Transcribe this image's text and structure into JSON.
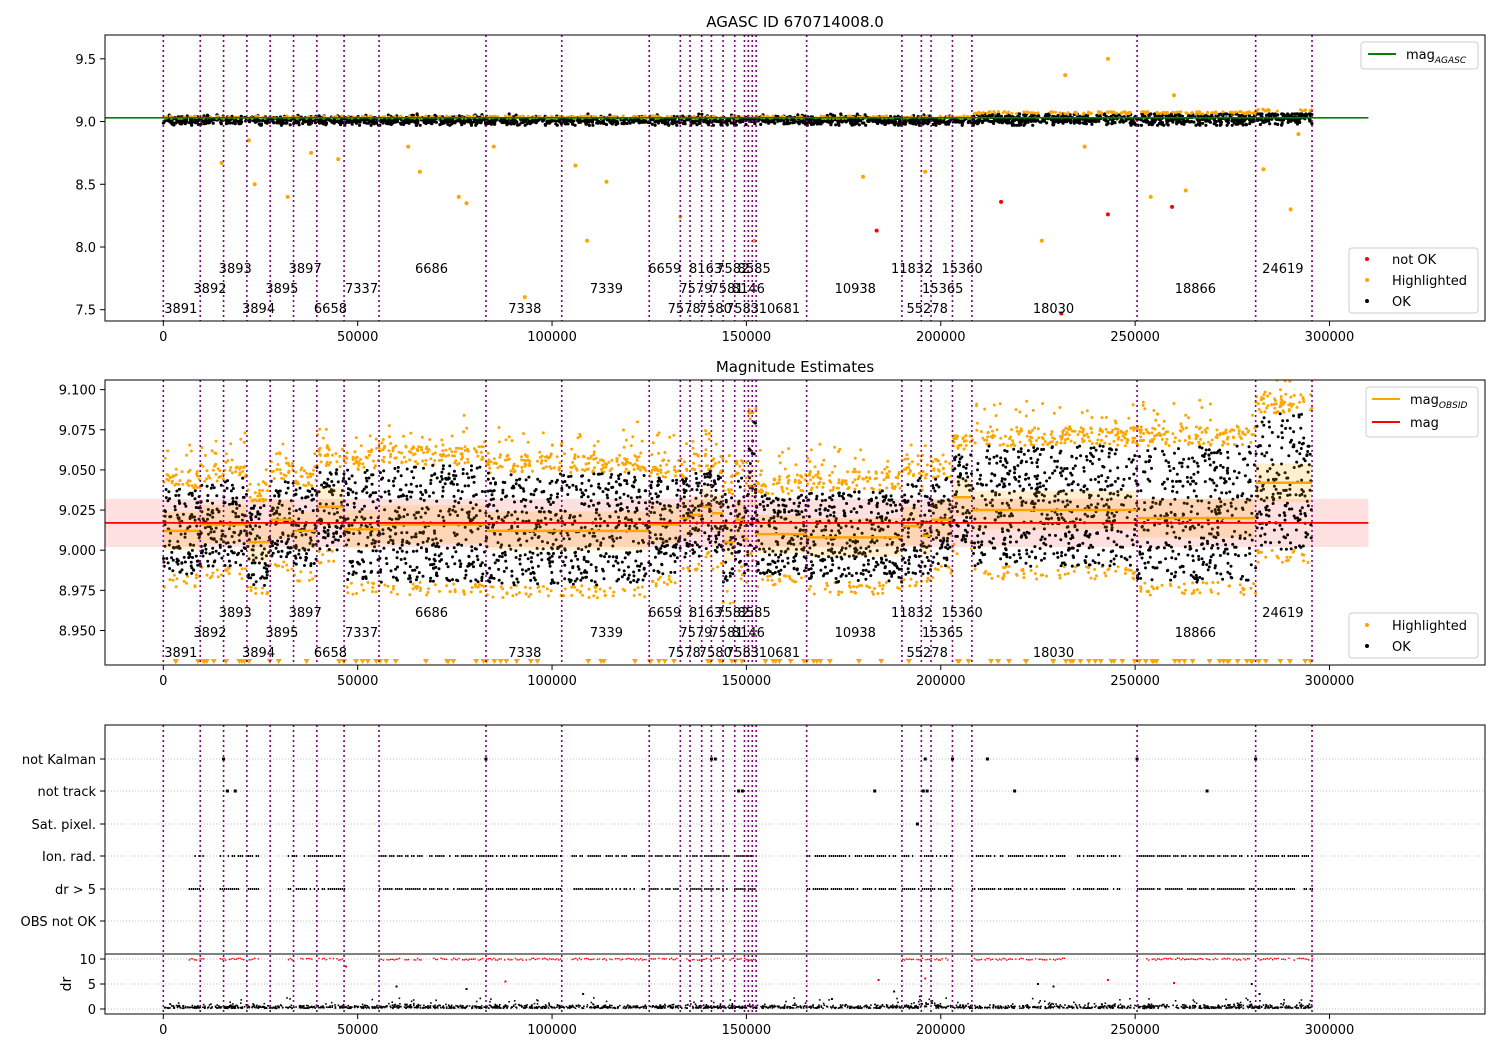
{
  "figure": {
    "title_top": "AGASC ID 670714008.0",
    "title_mid": "Magnitude Estimates"
  },
  "obsid_boundaries": [
    0,
    9500,
    15500,
    21500,
    27500,
    33500,
    39500,
    46500,
    55500,
    83000,
    102500,
    125000,
    133000,
    135500,
    138500,
    141000,
    144000,
    147000,
    149500,
    150500,
    151500,
    152500,
    165500,
    190000,
    195000,
    197500,
    203000,
    208000,
    250500,
    281000,
    295500
  ],
  "obsid_labels": [
    {
      "text": "3891",
      "x": 4500,
      "row": 0
    },
    {
      "text": "3892",
      "x": 12000,
      "row": 1
    },
    {
      "text": "3893",
      "x": 18500,
      "row": 2
    },
    {
      "text": "3894",
      "x": 24500,
      "row": 0
    },
    {
      "text": "3895",
      "x": 30500,
      "row": 1
    },
    {
      "text": "3897",
      "x": 36500,
      "row": 2
    },
    {
      "text": "6658",
      "x": 43000,
      "row": 0
    },
    {
      "text": "7337",
      "x": 51000,
      "row": 1
    },
    {
      "text": "6686",
      "x": 69000,
      "row": 2
    },
    {
      "text": "7338",
      "x": 93000,
      "row": 0
    },
    {
      "text": "7339",
      "x": 114000,
      "row": 1
    },
    {
      "text": "6659",
      "x": 129000,
      "row": 2
    },
    {
      "text": "7578",
      "x": 134000,
      "row": 0
    },
    {
      "text": "7579",
      "x": 137000,
      "row": 1
    },
    {
      "text": "8163",
      "x": 139500,
      "row": 2
    },
    {
      "text": "7580",
      "x": 142000,
      "row": 0
    },
    {
      "text": "7581",
      "x": 145000,
      "row": 1
    },
    {
      "text": "7582",
      "x": 146500,
      "row": 2
    },
    {
      "text": "7583",
      "x": 149000,
      "row": 0
    },
    {
      "text": "8146",
      "x": 150500,
      "row": 1
    },
    {
      "text": "8585",
      "x": 152000,
      "row": 2
    },
    {
      "text": "10681",
      "x": 158500,
      "row": 0
    },
    {
      "text": "10938",
      "x": 178000,
      "row": 1
    },
    {
      "text": "11832",
      "x": 192500,
      "row": 2
    },
    {
      "text": "55278",
      "x": 196500,
      "row": 0
    },
    {
      "text": "15365",
      "x": 200500,
      "row": 1
    },
    {
      "text": "15360",
      "x": 205500,
      "row": 2
    },
    {
      "text": "18030",
      "x": 229000,
      "row": 0
    },
    {
      "text": "18866",
      "x": 265500,
      "row": 1
    },
    {
      "text": "24619",
      "x": 288000,
      "row": 2
    }
  ],
  "chart_data": [
    {
      "type": "scatter",
      "title": "AGASC ID 670714008.0",
      "xlim": [
        -15000,
        340000
      ],
      "ylim": [
        7.41,
        9.69
      ],
      "xticks": [
        0,
        50000,
        100000,
        150000,
        200000,
        250000,
        300000
      ],
      "yticks": [
        7.5,
        8.0,
        8.5,
        9.0,
        9.5
      ],
      "ytick_labels": [
        "7.5",
        "8.0",
        "8.5",
        "9.0",
        "9.5"
      ],
      "reference_line": {
        "name": "mag_AGASC",
        "y": 9.03,
        "x_range": [
          -15000,
          310000
        ],
        "color": "#008000"
      },
      "legend_upper": {
        "position": "upper right",
        "entries": [
          {
            "label_main": "mag",
            "label_sub": "AGASC",
            "color": "#008000",
            "kind": "line"
          }
        ]
      },
      "legend_lower": {
        "position": "lower right",
        "entries": [
          {
            "label": "not OK",
            "color": "#ff0000"
          },
          {
            "label": "Highlighted",
            "color": "#ffa500"
          },
          {
            "label": "OK",
            "color": "#000000"
          }
        ]
      },
      "series": [
        {
          "name": "OK",
          "color": "#000000",
          "description": "dense band of per-sample magnitudes",
          "x_range": [
            0,
            295500
          ],
          "y_approx": [
            8.97,
            9.06
          ]
        },
        {
          "name": "Highlighted",
          "color": "#ffa500",
          "points": [
            [
              15000,
              8.67
            ],
            [
              22000,
              8.85
            ],
            [
              23500,
              8.5
            ],
            [
              32000,
              8.4
            ],
            [
              38000,
              8.75
            ],
            [
              45000,
              8.7
            ],
            [
              63000,
              8.8
            ],
            [
              66000,
              8.6
            ],
            [
              76000,
              8.4
            ],
            [
              78000,
              8.35
            ],
            [
              85000,
              8.8
            ],
            [
              93000,
              7.6
            ],
            [
              106000,
              8.65
            ],
            [
              109000,
              8.05
            ],
            [
              114000,
              8.52
            ],
            [
              133000,
              8.24
            ],
            [
              152000,
              8.05
            ],
            [
              180000,
              8.56
            ],
            [
              196000,
              8.6
            ],
            [
              226000,
              8.05
            ],
            [
              232000,
              9.37
            ],
            [
              237000,
              8.8
            ],
            [
              243000,
              9.5
            ],
            [
              254000,
              8.4
            ],
            [
              260000,
              9.21
            ],
            [
              263000,
              8.45
            ],
            [
              283000,
              8.62
            ],
            [
              290000,
              8.3
            ],
            [
              292000,
              8.9
            ]
          ]
        },
        {
          "name": "not OK",
          "color": "#ff0000",
          "points": [
            [
              183500,
              8.13
            ],
            [
              215500,
              8.36
            ],
            [
              231000,
              7.47
            ],
            [
              243000,
              8.26
            ],
            [
              259500,
              8.32
            ]
          ]
        }
      ]
    },
    {
      "type": "scatter",
      "title": "Magnitude Estimates",
      "xlim": [
        -15000,
        340000
      ],
      "ylim": [
        8.9285,
        9.106
      ],
      "xticks": [
        0,
        50000,
        100000,
        150000,
        200000,
        250000,
        300000
      ],
      "yticks": [
        8.95,
        8.975,
        9.0,
        9.025,
        9.05,
        9.075,
        9.1
      ],
      "ytick_labels": [
        "8.950",
        "8.975",
        "9.000",
        "9.025",
        "9.050",
        "9.075",
        "9.100"
      ],
      "mean_mag": {
        "name": "mag",
        "y": 9.017,
        "band": [
          9.002,
          9.032
        ],
        "x_range": [
          -15000,
          310000
        ],
        "color": "#ff0000"
      },
      "legend_upper": {
        "position": "upper right",
        "entries": [
          {
            "label_main": "mag",
            "label_sub": "OBSID",
            "color": "#ffa500",
            "kind": "line"
          },
          {
            "label_main": "mag",
            "label_sub": "",
            "color": "#ff0000",
            "kind": "line"
          }
        ]
      },
      "legend_lower": {
        "position": "lower right",
        "entries": [
          {
            "label": "Highlighted",
            "color": "#ffa500"
          },
          {
            "label": "OK",
            "color": "#000000"
          }
        ]
      },
      "obsid_mag": [
        {
          "x0": 0,
          "x1": 9500,
          "mag": 9.012,
          "lo": 8.985,
          "hi": 9.038
        },
        {
          "x0": 9500,
          "x1": 15500,
          "mag": 9.016,
          "lo": 8.99,
          "hi": 9.042
        },
        {
          "x0": 15500,
          "x1": 21500,
          "mag": 9.016,
          "lo": 8.99,
          "hi": 9.045
        },
        {
          "x0": 21500,
          "x1": 27500,
          "mag": 9.005,
          "lo": 8.978,
          "hi": 9.03
        },
        {
          "x0": 27500,
          "x1": 33500,
          "mag": 9.019,
          "lo": 8.995,
          "hi": 9.043
        },
        {
          "x0": 33500,
          "x1": 39500,
          "mag": 9.012,
          "lo": 8.988,
          "hi": 9.04
        },
        {
          "x0": 39500,
          "x1": 46500,
          "mag": 9.027,
          "lo": 9.0,
          "hi": 9.052
        },
        {
          "x0": 46500,
          "x1": 55500,
          "mag": 9.013,
          "lo": 8.98,
          "hi": 9.05
        },
        {
          "x0": 55500,
          "x1": 83000,
          "mag": 9.016,
          "lo": 8.98,
          "hi": 9.053
        },
        {
          "x0": 83000,
          "x1": 102500,
          "mag": 9.012,
          "lo": 8.978,
          "hi": 9.048
        },
        {
          "x0": 102500,
          "x1": 125000,
          "mag": 9.012,
          "lo": 8.978,
          "hi": 9.048
        },
        {
          "x0": 125000,
          "x1": 133000,
          "mag": 9.016,
          "lo": 8.985,
          "hi": 9.045
        },
        {
          "x0": 133000,
          "x1": 135500,
          "mag": 9.02,
          "lo": 8.995,
          "hi": 9.045
        },
        {
          "x0": 135500,
          "x1": 138500,
          "mag": 9.022,
          "lo": 8.995,
          "hi": 9.048
        },
        {
          "x0": 138500,
          "x1": 141000,
          "mag": 9.027,
          "lo": 9.0,
          "hi": 9.05
        },
        {
          "x0": 141000,
          "x1": 144000,
          "mag": 9.023,
          "lo": 8.995,
          "hi": 9.047
        },
        {
          "x0": 144000,
          "x1": 147000,
          "mag": 9.005,
          "lo": 8.975,
          "hi": 9.035
        },
        {
          "x0": 147000,
          "x1": 149500,
          "mag": 9.019,
          "lo": 8.99,
          "hi": 9.045
        },
        {
          "x0": 149500,
          "x1": 150500,
          "mag": 9.007,
          "lo": 8.98,
          "hi": 9.035
        },
        {
          "x0": 150500,
          "x1": 152500,
          "mag": 9.04,
          "lo": 9.0,
          "hi": 9.08
        },
        {
          "x0": 152500,
          "x1": 165500,
          "mag": 9.01,
          "lo": 8.985,
          "hi": 9.035
        },
        {
          "x0": 165500,
          "x1": 190000,
          "mag": 9.008,
          "lo": 8.98,
          "hi": 9.037
        },
        {
          "x0": 190000,
          "x1": 195000,
          "mag": 9.015,
          "lo": 8.985,
          "hi": 9.045
        },
        {
          "x0": 195000,
          "x1": 197500,
          "mag": 9.009,
          "lo": 8.985,
          "hi": 9.035
        },
        {
          "x0": 197500,
          "x1": 203000,
          "mag": 9.019,
          "lo": 8.99,
          "hi": 9.045
        },
        {
          "x0": 203000,
          "x1": 208000,
          "mag": 9.033,
          "lo": 9.005,
          "hi": 9.06
        },
        {
          "x0": 208000,
          "x1": 250500,
          "mag": 9.025,
          "lo": 8.99,
          "hi": 9.065
        },
        {
          "x0": 250500,
          "x1": 281000,
          "mag": 9.02,
          "lo": 8.98,
          "hi": 9.065
        },
        {
          "x0": 281000,
          "x1": 295500,
          "mag": 9.042,
          "lo": 9.0,
          "hi": 9.085
        }
      ]
    },
    {
      "type": "scatter",
      "title": "",
      "xlim": [
        -15000,
        340000
      ],
      "xticks": [
        0,
        50000,
        100000,
        150000,
        200000,
        250000,
        300000
      ],
      "flag_rows": [
        "not Kalman",
        "not track",
        "Sat. pixel.",
        "Ion. rad.",
        "dr > 5",
        "OBS not OK"
      ],
      "flags": {
        "not Kalman": [
          15500,
          83000,
          141000,
          142000,
          196000,
          203000,
          212000,
          250500,
          281000
        ],
        "not track": [
          16500,
          18500,
          148000,
          149000,
          183000,
          195500,
          196500,
          219000,
          268500
        ],
        "Sat. pixel.": [
          194000
        ],
        "Ion. rad.": {
          "ranges": [
            [
              8000,
              10500
            ],
            [
              14500,
              24500
            ],
            [
              32000,
              46500
            ],
            [
              55500,
              82500
            ],
            [
              83000,
              102500
            ],
            [
              105000,
              124500
            ],
            [
              125000,
              132500
            ],
            [
              134500,
              152500
            ],
            [
              165500,
              189500
            ],
            [
              190000,
              202500
            ],
            [
              208000,
              232000
            ],
            [
              234000,
              246000
            ],
            [
              250500,
              280500
            ],
            [
              281500,
              295500
            ]
          ]
        },
        "dr > 5": {
          "ranges": [
            [
              6500,
              10500
            ],
            [
              14500,
              24500
            ],
            [
              32000,
              46500
            ],
            [
              55500,
              82500
            ],
            [
              83000,
              102500
            ],
            [
              105000,
              124500
            ],
            [
              125000,
              132500
            ],
            [
              134500,
              152500
            ],
            [
              165500,
              189500
            ],
            [
              190000,
              202500
            ],
            [
              208000,
              232000
            ],
            [
              234000,
              246000
            ],
            [
              250500,
              280500
            ],
            [
              281500,
              295500
            ]
          ]
        }
      },
      "dr_panel": {
        "ylabel": "dr",
        "ylim": [
          -1,
          11
        ],
        "yticks": [
          0,
          5,
          10
        ],
        "ytick_labels": [
          "0",
          "5",
          "10"
        ],
        "clipped_at": 10,
        "clipped_ranges": [
          [
            6500,
            10500
          ],
          [
            14500,
            24500
          ],
          [
            32000,
            46500
          ],
          [
            55500,
            82500
          ],
          [
            83000,
            102500
          ],
          [
            105000,
            124500
          ],
          [
            125000,
            132500
          ],
          [
            134500,
            152500
          ],
          [
            190000,
            202500
          ],
          [
            208000,
            232000
          ],
          [
            250500,
            280500
          ],
          [
            281500,
            295500
          ]
        ],
        "outliers": [
          [
            47000,
            8.5
          ],
          [
            60000,
            4.5
          ],
          [
            78000,
            4.0
          ],
          [
            88000,
            5.5
          ],
          [
            108000,
            3.0
          ],
          [
            172000,
            2.0
          ],
          [
            184000,
            5.8
          ],
          [
            188000,
            3.5
          ],
          [
            196000,
            6.1
          ],
          [
            225000,
            5.0
          ],
          [
            229000,
            4.5
          ],
          [
            243000,
            5.8
          ],
          [
            260000,
            5.2
          ],
          [
            280000,
            5.0
          ],
          [
            282000,
            3.0
          ]
        ]
      }
    }
  ]
}
